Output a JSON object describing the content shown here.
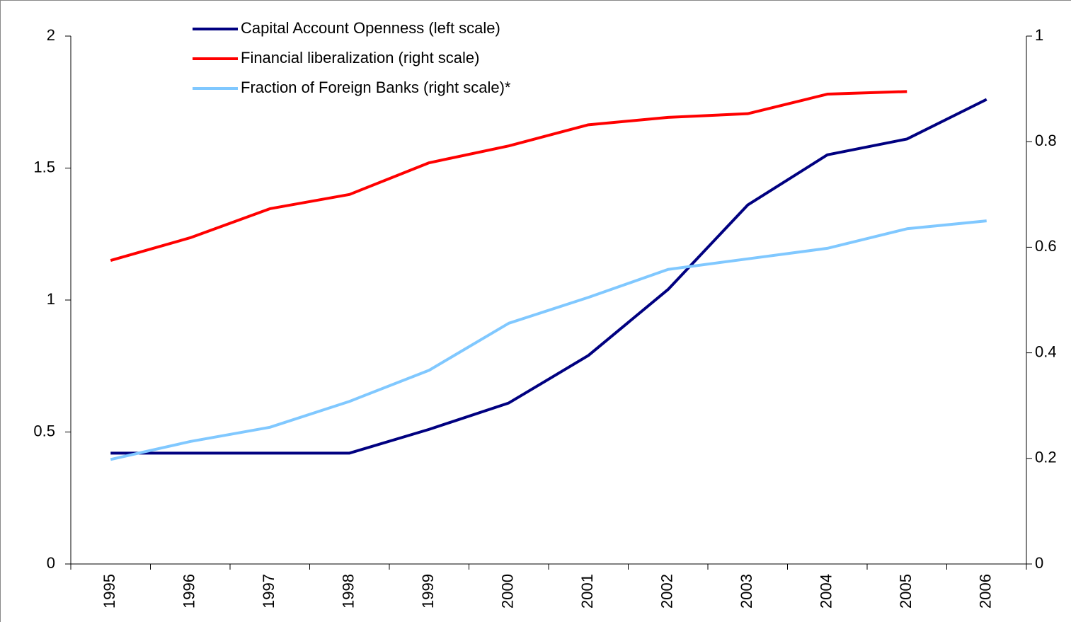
{
  "chart_data": {
    "type": "line",
    "categories": [
      "1995",
      "1996",
      "1997",
      "1998",
      "1999",
      "2000",
      "2001",
      "2002",
      "2003",
      "2004",
      "2005",
      "2006"
    ],
    "series": [
      {
        "name": "Capital Account Openness (left scale)",
        "color": "#000080",
        "axis": "y",
        "values": [
          0.42,
          0.42,
          0.42,
          0.42,
          0.51,
          0.61,
          0.79,
          1.04,
          1.36,
          1.55,
          1.61,
          1.76
        ]
      },
      {
        "name": "Financial liberalization (right scale)",
        "color": "#ff0000",
        "axis": "y2",
        "values": [
          0.575,
          0.618,
          0.673,
          0.7,
          0.76,
          0.792,
          0.832,
          0.846,
          0.853,
          0.89,
          0.895,
          null
        ]
      },
      {
        "name": "Fraction of Foreign Banks (right scale)*",
        "color": "#80c8ff",
        "axis": "y2",
        "values": [
          0.198,
          0.232,
          0.259,
          0.308,
          0.367,
          0.456,
          0.505,
          0.558,
          0.578,
          0.598,
          0.635,
          0.65
        ]
      }
    ],
    "ylim": [
      0,
      2
    ],
    "yticks": [
      0,
      0.5,
      1,
      1.5,
      2
    ],
    "y2lim": [
      0,
      1
    ],
    "y2ticks": [
      0,
      0.2,
      0.4,
      0.6,
      0.8,
      1
    ],
    "grid": false,
    "legend": "top"
  }
}
